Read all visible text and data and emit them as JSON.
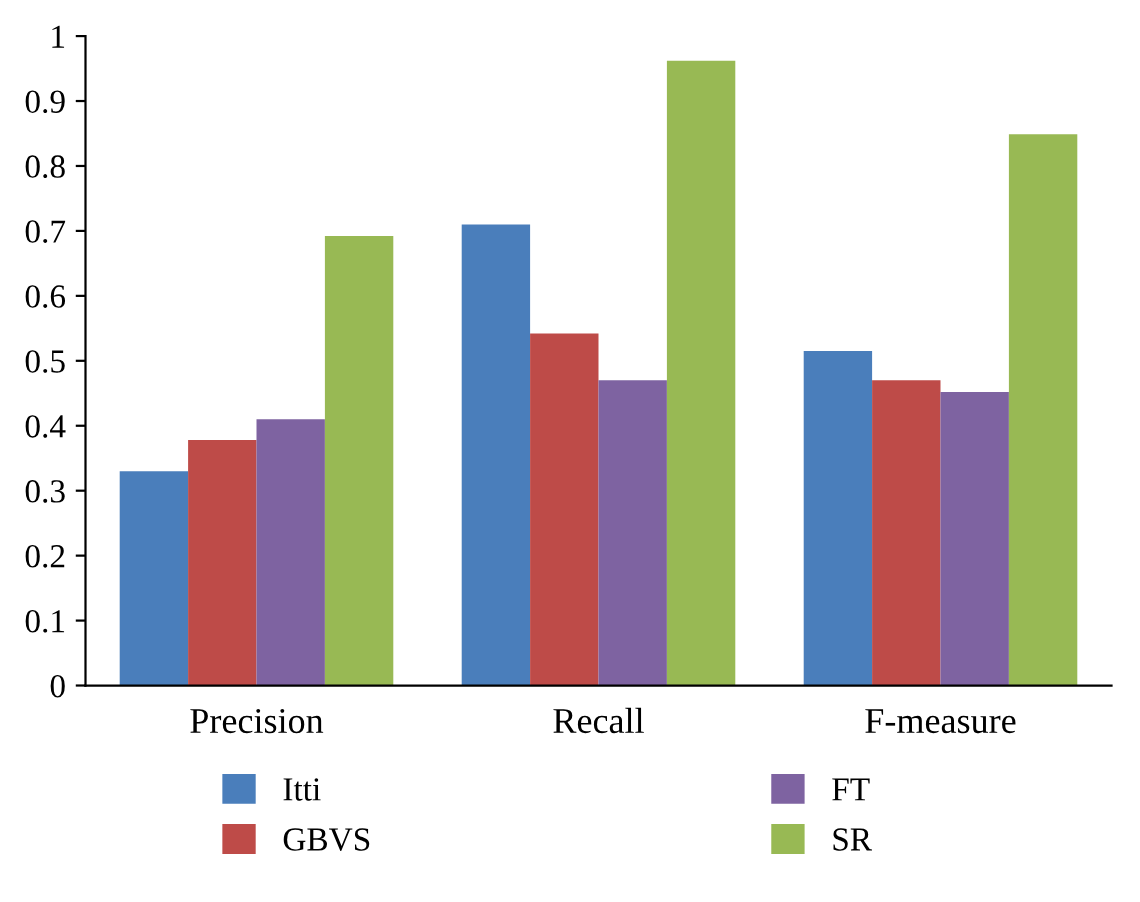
{
  "chart_data": {
    "type": "bar",
    "categories": [
      "Precision",
      "Recall",
      "F-measure"
    ],
    "series": [
      {
        "name": "Itti",
        "color": "#4a7ebb",
        "values": [
          0.33,
          0.71,
          0.515
        ]
      },
      {
        "name": "GBVS",
        "color": "#be4b48",
        "values": [
          0.378,
          0.542,
          0.47
        ]
      },
      {
        "name": "FT",
        "color": "#7e63a1",
        "values": [
          0.41,
          0.47,
          0.452
        ]
      },
      {
        "name": "SR",
        "color": "#98b954",
        "values": [
          0.692,
          0.962,
          0.849
        ]
      }
    ],
    "ylim": [
      0,
      1
    ],
    "yticks": [
      0,
      0.1,
      0.2,
      0.3,
      0.4,
      0.5,
      0.6,
      0.7,
      0.8,
      0.9,
      1
    ],
    "grid": false,
    "legend": "bottom"
  }
}
